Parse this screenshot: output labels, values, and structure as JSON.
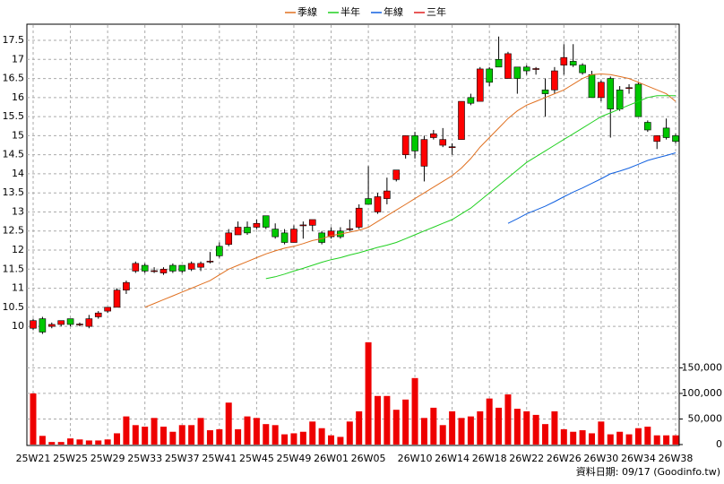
{
  "chart_data": {
    "type": "candlestick",
    "categories": [
      "25W21",
      null,
      null,
      null,
      "25W25",
      null,
      null,
      null,
      "25W29",
      null,
      null,
      null,
      "25W33",
      null,
      null,
      null,
      "25W37",
      null,
      null,
      null,
      "25W41",
      null,
      null,
      null,
      "25W45",
      null,
      null,
      null,
      "25W49",
      null,
      null,
      null,
      "26W01",
      null,
      null,
      null,
      "26W05",
      null,
      null,
      null,
      null,
      "26W10",
      null,
      null,
      null,
      "26W14",
      null,
      null,
      null,
      "26W18",
      null,
      null,
      null,
      "26W22",
      null,
      null,
      null,
      "26W26",
      null,
      null,
      null,
      "26W30",
      null,
      null,
      null,
      "26W34",
      null,
      null,
      null,
      "26W38"
    ],
    "open": [
      9.95,
      10.2,
      10.0,
      10.05,
      10.2,
      10.05,
      10.0,
      10.25,
      10.4,
      10.5,
      10.95,
      11.45,
      11.6,
      11.45,
      11.4,
      11.6,
      11.6,
      11.5,
      11.55,
      11.7,
      12.1,
      12.15,
      12.4,
      12.6,
      12.6,
      12.9,
      12.55,
      12.45,
      12.2,
      12.65,
      12.65,
      12.45,
      12.35,
      12.5,
      12.55,
      12.6,
      13.35,
      13.0,
      13.35,
      13.85,
      14.5,
      15.0,
      14.2,
      14.95,
      14.75,
      14.7,
      14.9,
      16.0,
      15.9,
      16.75,
      17.0,
      16.5,
      16.8,
      16.8,
      16.75,
      16.2,
      16.2,
      16.85,
      16.95,
      16.85,
      16.6,
      16.0,
      16.5,
      16.2,
      16.25,
      16.35,
      15.35,
      14.85,
      15.2,
      15.0
    ],
    "high": [
      10.2,
      10.25,
      10.1,
      10.15,
      10.2,
      10.1,
      10.3,
      10.4,
      10.5,
      11.0,
      11.2,
      11.7,
      11.65,
      11.55,
      11.55,
      11.65,
      11.6,
      11.7,
      11.7,
      11.95,
      12.2,
      12.55,
      12.75,
      12.75,
      12.8,
      12.9,
      12.7,
      12.55,
      12.65,
      12.75,
      12.8,
      12.5,
      12.6,
      12.6,
      12.8,
      13.2,
      14.2,
      13.5,
      13.9,
      14.1,
      15.0,
      15.1,
      15.0,
      15.15,
      15.2,
      14.8,
      15.9,
      16.1,
      16.8,
      16.8,
      17.6,
      17.2,
      16.8,
      16.85,
      16.8,
      16.5,
      16.8,
      17.4,
      17.4,
      16.9,
      16.7,
      16.45,
      16.55,
      16.3,
      16.35,
      16.4,
      15.4,
      15.0,
      15.45,
      15.05
    ],
    "low": [
      9.9,
      9.8,
      9.95,
      10.0,
      10.0,
      10.0,
      9.95,
      10.2,
      10.35,
      10.5,
      10.85,
      11.4,
      11.4,
      11.4,
      11.35,
      11.4,
      11.4,
      11.45,
      11.45,
      11.65,
      11.8,
      12.1,
      12.4,
      12.4,
      12.55,
      12.55,
      12.3,
      12.15,
      12.2,
      12.3,
      12.5,
      12.15,
      12.3,
      12.3,
      12.5,
      12.55,
      13.2,
      12.95,
      13.2,
      13.8,
      14.4,
      14.4,
      13.8,
      14.9,
      14.7,
      14.5,
      14.9,
      15.8,
      15.9,
      16.3,
      16.8,
      16.5,
      16.1,
      16.6,
      16.6,
      15.5,
      16.1,
      16.6,
      16.8,
      16.6,
      16.0,
      15.9,
      14.95,
      15.65,
      16.1,
      15.5,
      15.1,
      14.65,
      14.9,
      14.8
    ],
    "close": [
      10.15,
      9.85,
      10.05,
      10.15,
      10.05,
      10.06,
      10.2,
      10.35,
      10.5,
      10.95,
      11.15,
      11.65,
      11.45,
      11.46,
      11.5,
      11.45,
      11.45,
      11.65,
      11.65,
      11.71,
      11.85,
      12.45,
      12.6,
      12.45,
      12.7,
      12.6,
      12.35,
      12.2,
      12.55,
      12.66,
      12.8,
      12.2,
      12.5,
      12.35,
      12.56,
      13.1,
      13.2,
      13.4,
      13.55,
      14.1,
      15.0,
      14.6,
      14.9,
      15.05,
      14.9,
      14.71,
      15.9,
      15.85,
      16.75,
      16.4,
      16.8,
      17.15,
      16.5,
      16.7,
      16.76,
      16.1,
      16.7,
      17.05,
      16.85,
      16.65,
      16.0,
      16.4,
      15.7,
      15.7,
      16.26,
      15.5,
      15.15,
      15.0,
      14.95,
      14.85
    ],
    "up_color": "#ff0000",
    "down_color": "#00c800",
    "ylim": [
      9.65,
      17.9
    ],
    "yticks": [
      10,
      10.5,
      11,
      11.5,
      12,
      12.5,
      13,
      13.5,
      14,
      14.5,
      15,
      15.5,
      16,
      16.5,
      17,
      17.5
    ],
    "grid": true,
    "series": [
      {
        "name": "季線",
        "color": "#e07020",
        "values": [
          null,
          null,
          null,
          null,
          null,
          null,
          null,
          null,
          null,
          null,
          null,
          null,
          10.5,
          10.6,
          10.7,
          10.8,
          10.9,
          11.0,
          11.1,
          11.2,
          11.35,
          11.5,
          11.6,
          11.7,
          11.8,
          11.9,
          11.98,
          12.05,
          12.1,
          12.17,
          12.25,
          12.3,
          12.38,
          12.42,
          12.47,
          12.52,
          12.6,
          12.75,
          12.9,
          13.05,
          13.2,
          13.35,
          13.5,
          13.65,
          13.8,
          13.95,
          14.15,
          14.4,
          14.7,
          14.95,
          15.2,
          15.45,
          15.65,
          15.8,
          15.9,
          16.0,
          16.1,
          16.2,
          16.35,
          16.5,
          16.6,
          16.62,
          16.6,
          16.55,
          16.5,
          16.4,
          16.3,
          16.2,
          16.1,
          15.9
        ]
      },
      {
        "name": "半年",
        "color": "#20d020",
        "values": [
          null,
          null,
          null,
          null,
          null,
          null,
          null,
          null,
          null,
          null,
          null,
          null,
          null,
          null,
          null,
          null,
          null,
          null,
          null,
          null,
          null,
          null,
          null,
          null,
          null,
          11.25,
          11.3,
          11.37,
          11.45,
          11.52,
          11.6,
          11.68,
          11.75,
          11.8,
          11.87,
          11.93,
          12.0,
          12.07,
          12.13,
          12.2,
          12.3,
          12.4,
          12.5,
          12.6,
          12.7,
          12.8,
          12.95,
          13.1,
          13.3,
          13.5,
          13.7,
          13.9,
          14.1,
          14.3,
          14.45,
          14.6,
          14.75,
          14.9,
          15.05,
          15.2,
          15.35,
          15.5,
          15.6,
          15.7,
          15.8,
          15.9,
          16.0,
          16.05,
          16.05,
          16.05
        ]
      },
      {
        "name": "年線",
        "color": "#1060e0",
        "values": [
          null,
          null,
          null,
          null,
          null,
          null,
          null,
          null,
          null,
          null,
          null,
          null,
          null,
          null,
          null,
          null,
          null,
          null,
          null,
          null,
          null,
          null,
          null,
          null,
          null,
          null,
          null,
          null,
          null,
          null,
          null,
          null,
          null,
          null,
          null,
          null,
          null,
          null,
          null,
          null,
          null,
          null,
          null,
          null,
          null,
          null,
          null,
          null,
          null,
          null,
          null,
          12.7,
          12.82,
          12.95,
          13.05,
          13.15,
          13.27,
          13.4,
          13.52,
          13.63,
          13.75,
          13.87,
          14.0,
          14.07,
          14.15,
          14.25,
          14.35,
          14.42,
          14.48,
          14.55
        ]
      },
      {
        "name": "三年",
        "color": "#e02020",
        "values": [
          null,
          null,
          null,
          null,
          null,
          null,
          null,
          null,
          null,
          null,
          null,
          null,
          null,
          null,
          null,
          null,
          null,
          null,
          null,
          null,
          null,
          null,
          null,
          null,
          null,
          null,
          null,
          null,
          null,
          null,
          null,
          null,
          null,
          null,
          null,
          null,
          null,
          null,
          null,
          null,
          null,
          null,
          null,
          null,
          null,
          null,
          null,
          null,
          null,
          null,
          null,
          null,
          null,
          null,
          null,
          null,
          null,
          null,
          null,
          null,
          null,
          null,
          null,
          null,
          null,
          null,
          null,
          null,
          null,
          null
        ]
      }
    ],
    "volume": {
      "color": "#ee0000",
      "values": [
        100000,
        17000,
        5000,
        5000,
        12000,
        10000,
        8000,
        8000,
        10000,
        22000,
        55000,
        38000,
        35000,
        52000,
        35000,
        25000,
        38000,
        38000,
        52000,
        28000,
        30000,
        82000,
        30000,
        55000,
        52000,
        40000,
        38000,
        20000,
        22000,
        25000,
        45000,
        32000,
        18000,
        15000,
        45000,
        65000,
        200000,
        95000,
        95000,
        68000,
        88000,
        130000,
        52000,
        72000,
        38000,
        65000,
        52000,
        55000,
        65000,
        90000,
        72000,
        98000,
        70000,
        65000,
        58000,
        40000,
        65000,
        30000,
        25000,
        28000,
        22000,
        45000,
        20000,
        25000,
        20000,
        32000,
        35000,
        18000,
        18000,
        18000
      ],
      "ylim": [
        0,
        205000
      ],
      "yticks": [
        0,
        {
          "value": 50000,
          "label": "50,000"
        },
        {
          "value": 100000,
          "label": "100,000"
        },
        {
          "value": 150000,
          "label": "150,000"
        }
      ]
    },
    "footer": "資料日期: 09/17  (Goodinfo.tw)"
  }
}
